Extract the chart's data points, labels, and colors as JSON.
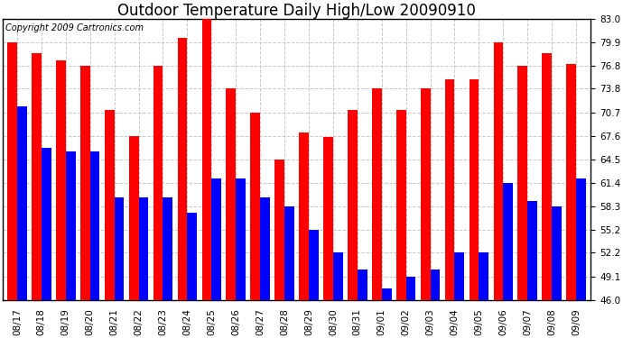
{
  "title": "Outdoor Temperature Daily High/Low 20090910",
  "copyright": "Copyright 2009 Cartronics.com",
  "dates": [
    "08/17",
    "08/18",
    "08/19",
    "08/20",
    "08/21",
    "08/22",
    "08/23",
    "08/24",
    "08/25",
    "08/26",
    "08/27",
    "08/28",
    "08/29",
    "08/30",
    "08/31",
    "09/01",
    "09/02",
    "09/03",
    "09/04",
    "09/05",
    "09/06",
    "09/07",
    "09/08",
    "09/09"
  ],
  "highs": [
    79.9,
    78.5,
    77.5,
    76.8,
    71.0,
    67.6,
    76.8,
    80.5,
    84.0,
    73.8,
    70.7,
    64.5,
    68.0,
    67.5,
    71.0,
    73.8,
    71.0,
    73.8,
    75.0,
    75.0,
    79.9,
    76.8,
    78.5,
    77.0
  ],
  "lows": [
    71.5,
    66.0,
    65.5,
    65.5,
    59.5,
    59.5,
    59.5,
    57.5,
    62.0,
    62.0,
    59.5,
    58.3,
    55.2,
    52.2,
    50.0,
    47.5,
    49.1,
    50.0,
    52.2,
    52.2,
    61.4,
    59.0,
    58.3,
    62.0
  ],
  "high_color": "#FF0000",
  "low_color": "#0000FF",
  "bg_color": "#FFFFFF",
  "grid_color": "#C8C8C8",
  "ymin": 46.0,
  "ymax": 83.0,
  "yticks": [
    46.0,
    49.1,
    52.2,
    55.2,
    58.3,
    61.4,
    64.5,
    67.6,
    70.7,
    73.8,
    76.8,
    79.9,
    83.0
  ],
  "title_fontsize": 12,
  "copyright_fontsize": 7,
  "tick_fontsize": 7.5,
  "bar_width": 0.4
}
